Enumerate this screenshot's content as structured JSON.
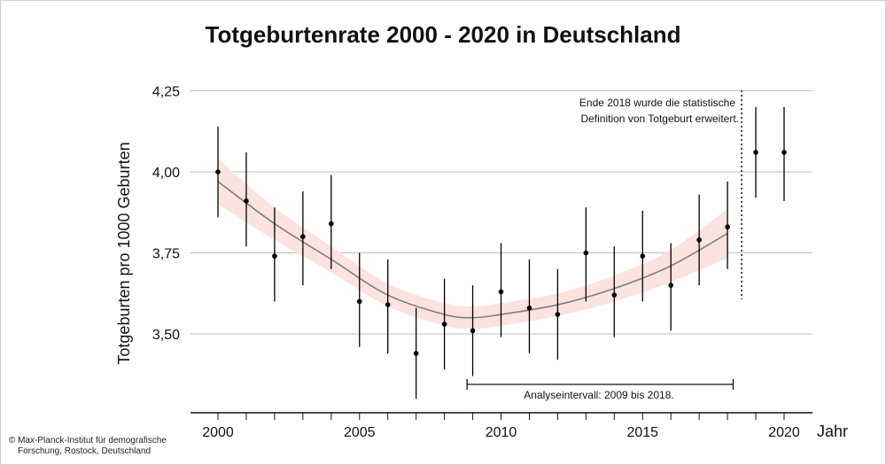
{
  "title": "Totgeburtenrate 2000 - 2020 in Deutschland",
  "credit": {
    "line1": "© Max-Planck-Institut für demografische",
    "line2": "Forschung, Rostock, Deutschland"
  },
  "chart_data": {
    "type": "scatter",
    "title": "Totgeburtenrate 2000 - 2020 in Deutschland",
    "xlabel": "Jahr",
    "ylabel": "Totgeburten pro 1000 Geburten",
    "xlim": [
      1999,
      2021
    ],
    "ylim": [
      3.25,
      4.35
    ],
    "x_ticks": [
      2000,
      2005,
      2010,
      2015,
      2020
    ],
    "x_tick_labels": [
      "2000",
      "2005",
      "2010",
      "2015",
      "2020"
    ],
    "y_ticks": [
      3.5,
      3.75,
      4.0,
      4.25
    ],
    "y_tick_labels": [
      "3,50",
      "3,75",
      "4,00",
      "4,25"
    ],
    "grid": "horizontal",
    "series": [
      {
        "points": [
          {
            "x": 2000,
            "y": 4.0,
            "lo": 3.86,
            "hi": 4.14
          },
          {
            "x": 2001,
            "y": 3.91,
            "lo": 3.77,
            "hi": 4.06
          },
          {
            "x": 2002,
            "y": 3.74,
            "lo": 3.6,
            "hi": 3.89
          },
          {
            "x": 2003,
            "y": 3.8,
            "lo": 3.65,
            "hi": 3.94
          },
          {
            "x": 2004,
            "y": 3.84,
            "lo": 3.7,
            "hi": 3.99
          },
          {
            "x": 2005,
            "y": 3.6,
            "lo": 3.46,
            "hi": 3.75
          },
          {
            "x": 2006,
            "y": 3.59,
            "lo": 3.44,
            "hi": 3.73
          },
          {
            "x": 2007,
            "y": 3.44,
            "lo": 3.3,
            "hi": 3.58
          },
          {
            "x": 2008,
            "y": 3.53,
            "lo": 3.39,
            "hi": 3.67
          },
          {
            "x": 2009,
            "y": 3.51,
            "lo": 3.37,
            "hi": 3.65
          },
          {
            "x": 2010,
            "y": 3.63,
            "lo": 3.49,
            "hi": 3.78
          },
          {
            "x": 2011,
            "y": 3.58,
            "lo": 3.44,
            "hi": 3.73
          },
          {
            "x": 2012,
            "y": 3.56,
            "lo": 3.42,
            "hi": 3.7
          },
          {
            "x": 2013,
            "y": 3.75,
            "lo": 3.6,
            "hi": 3.89
          },
          {
            "x": 2014,
            "y": 3.62,
            "lo": 3.49,
            "hi": 3.77
          },
          {
            "x": 2015,
            "y": 3.74,
            "lo": 3.6,
            "hi": 3.88
          },
          {
            "x": 2016,
            "y": 3.65,
            "lo": 3.51,
            "hi": 3.78
          },
          {
            "x": 2017,
            "y": 3.79,
            "lo": 3.65,
            "hi": 3.93
          },
          {
            "x": 2018,
            "y": 3.83,
            "lo": 3.7,
            "hi": 3.97
          },
          {
            "x": 2019,
            "y": 4.06,
            "lo": 3.92,
            "hi": 4.2
          },
          {
            "x": 2020,
            "y": 4.06,
            "lo": 3.91,
            "hi": 4.2
          }
        ]
      }
    ],
    "trend": {
      "x": [
        2000,
        2002,
        2004,
        2006,
        2008,
        2009,
        2010,
        2012,
        2014,
        2016,
        2018
      ],
      "y": [
        3.97,
        3.84,
        3.73,
        3.62,
        3.56,
        3.55,
        3.56,
        3.59,
        3.64,
        3.71,
        3.81
      ],
      "band_halfwidth": [
        0.07,
        0.05,
        0.04,
        0.035,
        0.035,
        0.035,
        0.035,
        0.035,
        0.04,
        0.05,
        0.075
      ]
    },
    "colors": {
      "points": "#000000",
      "trend_line": "#808080",
      "trend_band": "#fbe3df",
      "grid": "#bdbdbd"
    },
    "divider_year": 2018.5,
    "annotations": {
      "definition_line1": "Ende 2018 wurde die statistische",
      "definition_line2": "Definition von Totgeburt erweitert.",
      "interval_label": "Analyseintervall: 2009 bis 2018.",
      "interval_range": [
        2008.8,
        2018.2
      ]
    }
  }
}
